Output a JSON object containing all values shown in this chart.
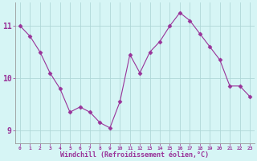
{
  "x": [
    0,
    1,
    2,
    3,
    4,
    5,
    6,
    7,
    8,
    9,
    10,
    11,
    12,
    13,
    14,
    15,
    16,
    17,
    18,
    19,
    20,
    21,
    22,
    23
  ],
  "y": [
    11.0,
    10.8,
    10.5,
    10.1,
    9.8,
    9.35,
    9.45,
    9.35,
    9.15,
    9.05,
    9.55,
    10.45,
    10.1,
    10.5,
    10.7,
    11.0,
    11.25,
    11.1,
    10.85,
    10.6,
    10.35,
    9.85,
    9.85,
    9.65
  ],
  "line_color": "#993399",
  "marker": "D",
  "marker_size": 2.5,
  "bg_color": "#d6f5f5",
  "grid_color": "#b0d8d8",
  "xlabel": "Windchill (Refroidissement éolien,°C)",
  "xlabel_color": "#993399",
  "tick_color": "#993399",
  "ylim": [
    8.75,
    11.45
  ],
  "yticks": [
    9,
    10,
    11
  ],
  "xlim": [
    -0.5,
    23.5
  ],
  "xticks": [
    0,
    1,
    2,
    3,
    4,
    5,
    6,
    7,
    8,
    9,
    10,
    11,
    12,
    13,
    14,
    15,
    16,
    17,
    18,
    19,
    20,
    21,
    22,
    23
  ],
  "spine_color": "#999999"
}
